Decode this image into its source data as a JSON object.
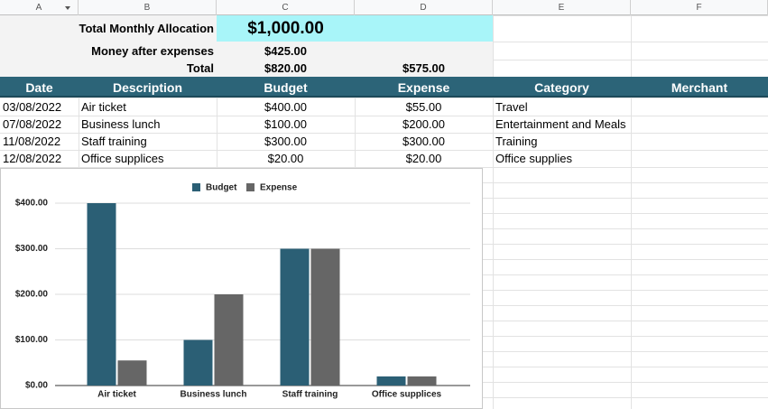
{
  "sheet": {
    "columns": [
      "A",
      "B",
      "C",
      "D",
      "E",
      "F"
    ],
    "summary": [
      [
        "Total Monthly Allocation",
        "$1,000.00"
      ],
      [
        "Money after expenses",
        "$425.00"
      ],
      [
        "Total",
        "$820.00",
        "$575.00"
      ]
    ],
    "header": [
      "Date",
      "Description",
      "Budget",
      "Expense",
      "Category",
      "Merchant"
    ],
    "rows": [
      [
        "03/08/2022",
        "Air ticket",
        "$400.00",
        "$55.00",
        "Travel"
      ],
      [
        "07/08/2022",
        "Business lunch",
        "$100.00",
        "$200.00",
        "Entertainment and Meals"
      ],
      [
        "11/08/2022",
        "Staff training",
        "$300.00",
        "$300.00",
        "Training"
      ],
      [
        "12/08/2022",
        "Office supplices",
        "$20.00",
        "$20.00",
        "Office supplies"
      ]
    ]
  },
  "chart_data": {
    "type": "bar",
    "legend": "top",
    "categories": [
      "Air ticket",
      "Business lunch",
      "Staff training",
      "Office supplices"
    ],
    "series": [
      {
        "name": "Budget",
        "color": "#2b5f75",
        "values": [
          400,
          100,
          300,
          20
        ]
      },
      {
        "name": "Expense",
        "color": "#666666",
        "values": [
          55,
          200,
          300,
          20
        ]
      }
    ],
    "ylim": [
      0,
      400
    ],
    "yticks": [
      {
        "value": 0,
        "label": "$0.00"
      },
      {
        "value": 100,
        "label": "$100.00"
      },
      {
        "value": 200,
        "label": "$200.00"
      },
      {
        "value": 300,
        "label": "$300.00"
      },
      {
        "value": 400,
        "label": "$400.00"
      }
    ],
    "grid": true
  }
}
